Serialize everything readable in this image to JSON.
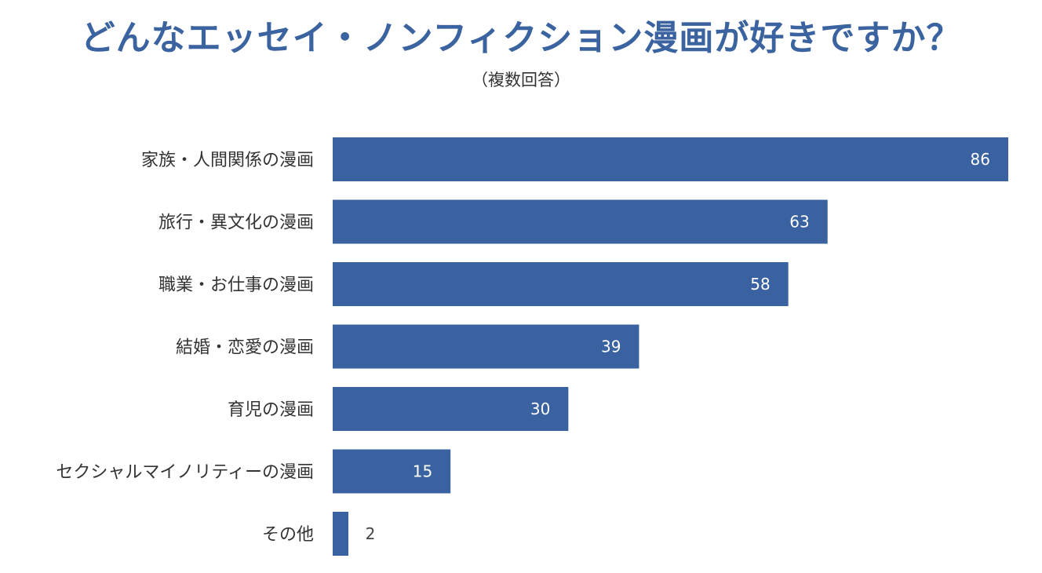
{
  "title": "どんなエッセイ・ノンフィクション漫画が好きですか？",
  "subtitle": "（複数回答）",
  "colors": {
    "bar": "#3a62a0",
    "title": "#3a63a0",
    "label": "#333333",
    "value_inside": "#ffffff",
    "value_outside": "#444444"
  },
  "chart_data": {
    "type": "bar",
    "orientation": "horizontal",
    "title": "どんなエッセイ・ノンフィクション漫画が好きですか？",
    "subtitle": "（複数回答）",
    "categories": [
      "家族・人間関係の漫画",
      "旅行・異文化の漫画",
      "職業・お仕事の漫画",
      "結婚・恋愛の漫画",
      "育児の漫画",
      "セクシャルマイノリティーの漫画",
      "その他"
    ],
    "values": [
      86,
      63,
      58,
      39,
      30,
      15,
      2
    ],
    "xlabel": "",
    "ylabel": "",
    "xlim": [
      0,
      86
    ],
    "grid": false,
    "legend": "none",
    "data_labels": true
  }
}
